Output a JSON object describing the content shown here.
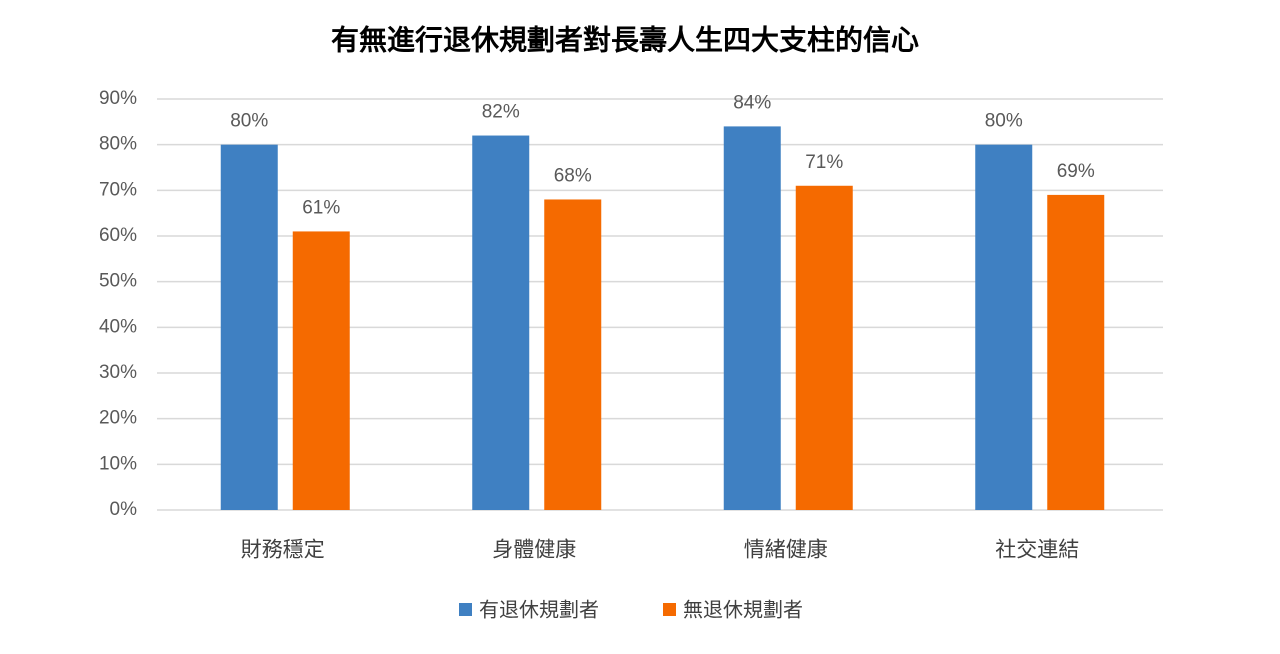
{
  "chart_data": {
    "type": "bar",
    "title": "有無進行退休規劃者對長壽人生四大支柱的信心",
    "categories": [
      "財務穩定",
      "身體健康",
      "情緒健康",
      "社交連結"
    ],
    "series": [
      {
        "name": "有退休規劃者",
        "color": "#3f80c2",
        "values": [
          80,
          82,
          84,
          80
        ],
        "value_labels": [
          "80%",
          "82%",
          "84%",
          "80%"
        ]
      },
      {
        "name": "無退休規劃者",
        "color": "#f56a00",
        "values": [
          61,
          68,
          71,
          69
        ],
        "value_labels": [
          "61%",
          "68%",
          "71%",
          "69%"
        ]
      }
    ],
    "ylim": [
      0,
      90
    ],
    "yticks": [
      {
        "value": 0,
        "label": "0%"
      },
      {
        "value": 10,
        "label": "10%"
      },
      {
        "value": 20,
        "label": "20%"
      },
      {
        "value": 30,
        "label": "30%"
      },
      {
        "value": 40,
        "label": "40%"
      },
      {
        "value": 50,
        "label": "50%"
      },
      {
        "value": 60,
        "label": "60%"
      },
      {
        "value": 70,
        "label": "70%"
      },
      {
        "value": 80,
        "label": "80%"
      },
      {
        "value": 90,
        "label": "90%"
      }
    ],
    "grid": true,
    "legend": "bottom"
  }
}
